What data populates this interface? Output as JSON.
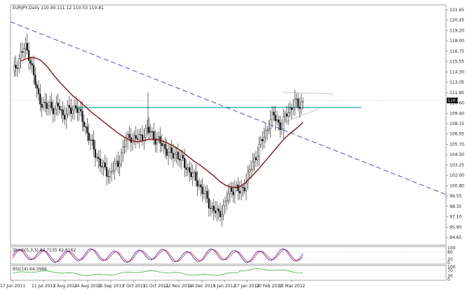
{
  "header": {
    "symbol_line": "EURJPY,Daily  110.90 111.12 110.53 110.81"
  },
  "chart_data": [
    {
      "type": "candlestick",
      "title": "EURJPY,Daily  110.90 111.12 110.53 110.81",
      "current_price": 110.81,
      "current_price_label": "110.81",
      "ylim": [
        94.45,
        121.65
      ],
      "y_tick_labels": [
        "121.65",
        "120.45",
        "119.20",
        "118.00",
        "116.75",
        "115.55",
        "114.30",
        "113.05",
        "111.85",
        "110.60",
        "109.40",
        "108.15",
        "106.95",
        "105.70",
        "104.50",
        "103.25",
        "102.00",
        "100.80",
        "99.55",
        "98.35",
        "97.10",
        "95.90",
        "94.65"
      ],
      "x_tick_labels": [
        "17 Jun 2011",
        "11 Jul 2011",
        "2 Aug 2011",
        "24 Aug 2011",
        "15 Sep 2011",
        "7 Oct 2011",
        "31 Oct 2011",
        "22 Nov 2011",
        "14 Dec 2011",
        "5 Jan 2012",
        "27 Jan 2012",
        "20 Feb 2012",
        "13 Mar 2012"
      ],
      "close_series": [
        114.0,
        115.2,
        116.5,
        117.2,
        116.2,
        113.8,
        111.5,
        110.6,
        110.0,
        110.4,
        109.8,
        110.2,
        109.1,
        109.7,
        109.6,
        110.4,
        109.2,
        108.1,
        106.8,
        105.3,
        104.3,
        103.2,
        102.6,
        102.1,
        102.9,
        103.3,
        104.9,
        106.1,
        106.7,
        106.3,
        106.4,
        106.9,
        107.4,
        107.0,
        106.3,
        105.9,
        105.4,
        104.8,
        104.3,
        104.7,
        103.9,
        103.1,
        102.6,
        101.8,
        101.2,
        100.3,
        99.3,
        98.4,
        97.8,
        97.3,
        98.1,
        99.4,
        100.3,
        100.6,
        99.9,
        100.7,
        102.1,
        103.3,
        104.6,
        105.8,
        106.9,
        108.3,
        109.1,
        108.4,
        107.7,
        109.3,
        109.9,
        110.6,
        110.3,
        110.8
      ],
      "moving_average_values": [
        115.6,
        115.9,
        116.0,
        115.7,
        115.0,
        114.0,
        113.1,
        112.3,
        111.5,
        110.9,
        110.2,
        109.5,
        108.9,
        108.3,
        107.7,
        107.1,
        106.6,
        106.2,
        106.0,
        106.1,
        106.3,
        106.3,
        106.1,
        105.8,
        105.4,
        104.9,
        104.3,
        103.7,
        103.2,
        102.6,
        102.0,
        101.3,
        100.8,
        100.6,
        100.6,
        101.1,
        101.9,
        102.7,
        103.6,
        104.5,
        105.4,
        106.3,
        107.0,
        107.6,
        108.3
      ],
      "horizontal_support_level": 109.4,
      "descending_trendline_points": [
        {
          "date": "17 Jun 2011",
          "price": 120.0
        },
        {
          "date": "13 Mar 2012",
          "price": 99.6
        }
      ],
      "dotted_level": 110.81,
      "grid": false,
      "indicators": [
        {
          "name": "Stoch(5,3,3)",
          "label": "Stoch(5,3,3) 64.7135 62.6162",
          "values": [
            64.7135,
            62.6162
          ],
          "y_ticks": [
            "100",
            "80",
            "20",
            "0"
          ],
          "colors": {
            "main": "#0000cc",
            "signal": "#cc0000"
          }
        },
        {
          "name": "RSI(14)",
          "label": "RSI(14) 64.3996",
          "value": 64.3996,
          "y_ticks": [
            "100",
            "70",
            "30",
            "0"
          ],
          "color": "#22aa22"
        }
      ]
    }
  ],
  "colors": {
    "candles": "#111111",
    "moving_average": "#8b1111",
    "trendline": "#4a4ad8",
    "support": "#16a8a0",
    "axis": "#444444",
    "price_box": "#000000"
  }
}
